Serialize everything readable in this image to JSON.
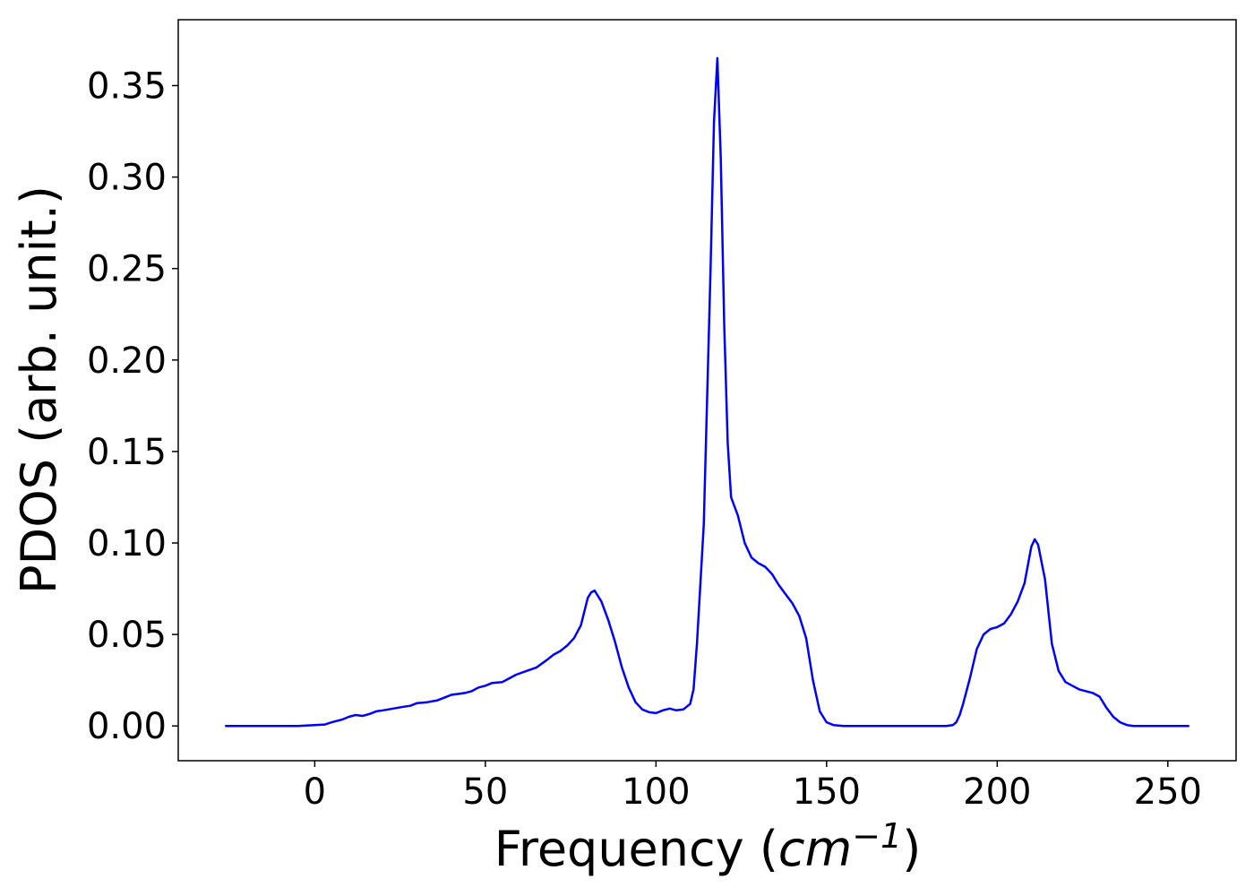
{
  "chart_data": {
    "type": "line",
    "title": "",
    "xlabel": {
      "prefix": "Frequency (",
      "unit_base": "cm",
      "unit_exponent": "−1",
      "suffix": ")"
    },
    "ylabel": "PDOS (arb. unit.)",
    "xlim": [
      -40,
      270
    ],
    "ylim": [
      -0.019,
      0.386
    ],
    "xticks": [
      0,
      50,
      100,
      150,
      200,
      250
    ],
    "xtick_labels": [
      "0",
      "50",
      "100",
      "150",
      "200",
      "250"
    ],
    "yticks": [
      0.0,
      0.05,
      0.1,
      0.15,
      0.2,
      0.25,
      0.3,
      0.35
    ],
    "ytick_labels": [
      "0.00",
      "0.05",
      "0.10",
      "0.15",
      "0.20",
      "0.25",
      "0.30",
      "0.35"
    ],
    "grid": false,
    "legend": false,
    "series": [
      {
        "color": "#0000ff",
        "x": [
          -26,
          -20,
          -10,
          -5,
          0,
          3,
          5,
          8,
          10,
          12,
          14,
          16,
          18,
          20,
          23,
          26,
          28,
          30,
          33,
          36,
          38,
          40,
          42,
          44,
          46,
          48,
          50,
          52,
          55,
          57,
          59,
          62,
          65,
          68,
          70,
          72,
          74,
          76,
          78,
          80,
          81,
          82,
          84,
          86,
          88,
          90,
          92,
          94,
          96,
          98,
          100,
          102,
          104,
          106,
          108,
          110,
          111,
          112,
          114,
          116,
          117,
          118,
          119,
          120,
          121,
          122,
          124,
          126,
          128,
          130,
          132,
          134,
          136,
          138,
          140,
          142,
          144,
          146,
          148,
          150,
          152,
          155,
          160,
          170,
          180,
          185,
          187,
          188,
          189,
          190,
          192,
          194,
          196,
          198,
          200,
          202,
          204,
          206,
          208,
          210,
          211,
          212,
          214,
          216,
          218,
          220,
          222,
          224,
          226,
          228,
          230,
          232,
          234,
          236,
          238,
          240,
          245,
          250,
          256
        ],
        "y": [
          0,
          0,
          0,
          0,
          0.0005,
          0.0008,
          0.002,
          0.0035,
          0.005,
          0.006,
          0.0055,
          0.0065,
          0.008,
          0.0085,
          0.0095,
          0.0105,
          0.011,
          0.0125,
          0.013,
          0.014,
          0.0155,
          0.017,
          0.0175,
          0.018,
          0.019,
          0.021,
          0.022,
          0.0235,
          0.024,
          0.026,
          0.028,
          0.03,
          0.032,
          0.036,
          0.039,
          0.041,
          0.044,
          0.048,
          0.055,
          0.07,
          0.073,
          0.074,
          0.068,
          0.058,
          0.046,
          0.032,
          0.021,
          0.013,
          0.009,
          0.0075,
          0.007,
          0.0085,
          0.0095,
          0.0085,
          0.009,
          0.012,
          0.02,
          0.045,
          0.11,
          0.25,
          0.33,
          0.365,
          0.31,
          0.22,
          0.155,
          0.125,
          0.115,
          0.1,
          0.092,
          0.089,
          0.087,
          0.083,
          0.077,
          0.072,
          0.067,
          0.06,
          0.048,
          0.025,
          0.008,
          0.002,
          0.0005,
          0,
          0,
          0,
          0,
          0,
          0.0005,
          0.002,
          0.006,
          0.012,
          0.026,
          0.042,
          0.05,
          0.053,
          0.054,
          0.056,
          0.061,
          0.068,
          0.078,
          0.098,
          0.102,
          0.099,
          0.08,
          0.045,
          0.03,
          0.024,
          0.022,
          0.02,
          0.019,
          0.018,
          0.016,
          0.01,
          0.005,
          0.002,
          0.0005,
          0,
          0,
          0,
          0
        ]
      }
    ]
  }
}
